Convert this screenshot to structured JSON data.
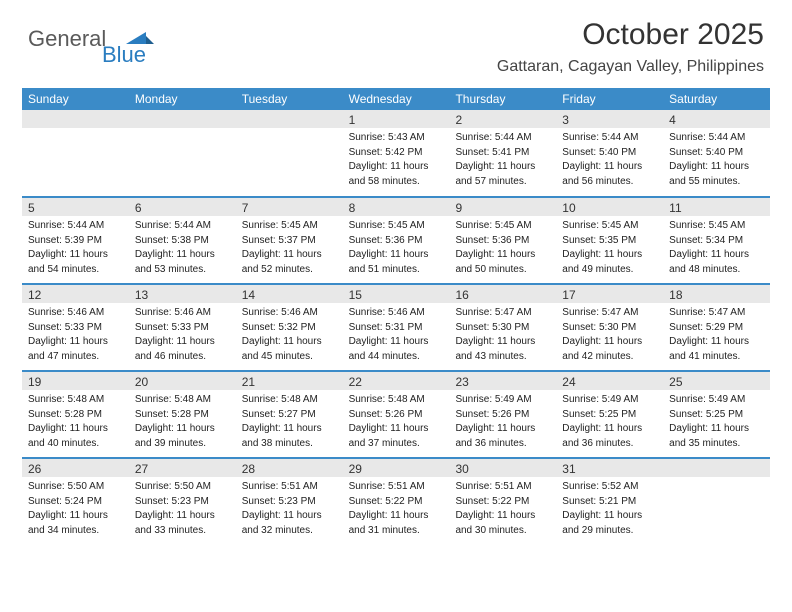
{
  "logo": {
    "text_general": "General",
    "text_blue": "Blue",
    "shape_color": "#2a7dc0",
    "text_general_color": "#5a5a5a"
  },
  "header": {
    "month_title": "October 2025",
    "location": "Gattaran, Cagayan Valley, Philippines",
    "title_fontsize": 30,
    "location_fontsize": 16
  },
  "colors": {
    "header_bar": "#3b8bc8",
    "daynum_bar": "#e8e8e8",
    "border": "#3b8bc8",
    "text": "#222222",
    "background": "#ffffff"
  },
  "weekdays": [
    "Sunday",
    "Monday",
    "Tuesday",
    "Wednesday",
    "Thursday",
    "Friday",
    "Saturday"
  ],
  "weeks": [
    [
      {
        "num": "",
        "sunrise": "",
        "sunset": "",
        "daylight1": "",
        "daylight2": ""
      },
      {
        "num": "",
        "sunrise": "",
        "sunset": "",
        "daylight1": "",
        "daylight2": ""
      },
      {
        "num": "",
        "sunrise": "",
        "sunset": "",
        "daylight1": "",
        "daylight2": ""
      },
      {
        "num": "1",
        "sunrise": "Sunrise: 5:43 AM",
        "sunset": "Sunset: 5:42 PM",
        "daylight1": "Daylight: 11 hours",
        "daylight2": "and 58 minutes."
      },
      {
        "num": "2",
        "sunrise": "Sunrise: 5:44 AM",
        "sunset": "Sunset: 5:41 PM",
        "daylight1": "Daylight: 11 hours",
        "daylight2": "and 57 minutes."
      },
      {
        "num": "3",
        "sunrise": "Sunrise: 5:44 AM",
        "sunset": "Sunset: 5:40 PM",
        "daylight1": "Daylight: 11 hours",
        "daylight2": "and 56 minutes."
      },
      {
        "num": "4",
        "sunrise": "Sunrise: 5:44 AM",
        "sunset": "Sunset: 5:40 PM",
        "daylight1": "Daylight: 11 hours",
        "daylight2": "and 55 minutes."
      }
    ],
    [
      {
        "num": "5",
        "sunrise": "Sunrise: 5:44 AM",
        "sunset": "Sunset: 5:39 PM",
        "daylight1": "Daylight: 11 hours",
        "daylight2": "and 54 minutes."
      },
      {
        "num": "6",
        "sunrise": "Sunrise: 5:44 AM",
        "sunset": "Sunset: 5:38 PM",
        "daylight1": "Daylight: 11 hours",
        "daylight2": "and 53 minutes."
      },
      {
        "num": "7",
        "sunrise": "Sunrise: 5:45 AM",
        "sunset": "Sunset: 5:37 PM",
        "daylight1": "Daylight: 11 hours",
        "daylight2": "and 52 minutes."
      },
      {
        "num": "8",
        "sunrise": "Sunrise: 5:45 AM",
        "sunset": "Sunset: 5:36 PM",
        "daylight1": "Daylight: 11 hours",
        "daylight2": "and 51 minutes."
      },
      {
        "num": "9",
        "sunrise": "Sunrise: 5:45 AM",
        "sunset": "Sunset: 5:36 PM",
        "daylight1": "Daylight: 11 hours",
        "daylight2": "and 50 minutes."
      },
      {
        "num": "10",
        "sunrise": "Sunrise: 5:45 AM",
        "sunset": "Sunset: 5:35 PM",
        "daylight1": "Daylight: 11 hours",
        "daylight2": "and 49 minutes."
      },
      {
        "num": "11",
        "sunrise": "Sunrise: 5:45 AM",
        "sunset": "Sunset: 5:34 PM",
        "daylight1": "Daylight: 11 hours",
        "daylight2": "and 48 minutes."
      }
    ],
    [
      {
        "num": "12",
        "sunrise": "Sunrise: 5:46 AM",
        "sunset": "Sunset: 5:33 PM",
        "daylight1": "Daylight: 11 hours",
        "daylight2": "and 47 minutes."
      },
      {
        "num": "13",
        "sunrise": "Sunrise: 5:46 AM",
        "sunset": "Sunset: 5:33 PM",
        "daylight1": "Daylight: 11 hours",
        "daylight2": "and 46 minutes."
      },
      {
        "num": "14",
        "sunrise": "Sunrise: 5:46 AM",
        "sunset": "Sunset: 5:32 PM",
        "daylight1": "Daylight: 11 hours",
        "daylight2": "and 45 minutes."
      },
      {
        "num": "15",
        "sunrise": "Sunrise: 5:46 AM",
        "sunset": "Sunset: 5:31 PM",
        "daylight1": "Daylight: 11 hours",
        "daylight2": "and 44 minutes."
      },
      {
        "num": "16",
        "sunrise": "Sunrise: 5:47 AM",
        "sunset": "Sunset: 5:30 PM",
        "daylight1": "Daylight: 11 hours",
        "daylight2": "and 43 minutes."
      },
      {
        "num": "17",
        "sunrise": "Sunrise: 5:47 AM",
        "sunset": "Sunset: 5:30 PM",
        "daylight1": "Daylight: 11 hours",
        "daylight2": "and 42 minutes."
      },
      {
        "num": "18",
        "sunrise": "Sunrise: 5:47 AM",
        "sunset": "Sunset: 5:29 PM",
        "daylight1": "Daylight: 11 hours",
        "daylight2": "and 41 minutes."
      }
    ],
    [
      {
        "num": "19",
        "sunrise": "Sunrise: 5:48 AM",
        "sunset": "Sunset: 5:28 PM",
        "daylight1": "Daylight: 11 hours",
        "daylight2": "and 40 minutes."
      },
      {
        "num": "20",
        "sunrise": "Sunrise: 5:48 AM",
        "sunset": "Sunset: 5:28 PM",
        "daylight1": "Daylight: 11 hours",
        "daylight2": "and 39 minutes."
      },
      {
        "num": "21",
        "sunrise": "Sunrise: 5:48 AM",
        "sunset": "Sunset: 5:27 PM",
        "daylight1": "Daylight: 11 hours",
        "daylight2": "and 38 minutes."
      },
      {
        "num": "22",
        "sunrise": "Sunrise: 5:48 AM",
        "sunset": "Sunset: 5:26 PM",
        "daylight1": "Daylight: 11 hours",
        "daylight2": "and 37 minutes."
      },
      {
        "num": "23",
        "sunrise": "Sunrise: 5:49 AM",
        "sunset": "Sunset: 5:26 PM",
        "daylight1": "Daylight: 11 hours",
        "daylight2": "and 36 minutes."
      },
      {
        "num": "24",
        "sunrise": "Sunrise: 5:49 AM",
        "sunset": "Sunset: 5:25 PM",
        "daylight1": "Daylight: 11 hours",
        "daylight2": "and 36 minutes."
      },
      {
        "num": "25",
        "sunrise": "Sunrise: 5:49 AM",
        "sunset": "Sunset: 5:25 PM",
        "daylight1": "Daylight: 11 hours",
        "daylight2": "and 35 minutes."
      }
    ],
    [
      {
        "num": "26",
        "sunrise": "Sunrise: 5:50 AM",
        "sunset": "Sunset: 5:24 PM",
        "daylight1": "Daylight: 11 hours",
        "daylight2": "and 34 minutes."
      },
      {
        "num": "27",
        "sunrise": "Sunrise: 5:50 AM",
        "sunset": "Sunset: 5:23 PM",
        "daylight1": "Daylight: 11 hours",
        "daylight2": "and 33 minutes."
      },
      {
        "num": "28",
        "sunrise": "Sunrise: 5:51 AM",
        "sunset": "Sunset: 5:23 PM",
        "daylight1": "Daylight: 11 hours",
        "daylight2": "and 32 minutes."
      },
      {
        "num": "29",
        "sunrise": "Sunrise: 5:51 AM",
        "sunset": "Sunset: 5:22 PM",
        "daylight1": "Daylight: 11 hours",
        "daylight2": "and 31 minutes."
      },
      {
        "num": "30",
        "sunrise": "Sunrise: 5:51 AM",
        "sunset": "Sunset: 5:22 PM",
        "daylight1": "Daylight: 11 hours",
        "daylight2": "and 30 minutes."
      },
      {
        "num": "31",
        "sunrise": "Sunrise: 5:52 AM",
        "sunset": "Sunset: 5:21 PM",
        "daylight1": "Daylight: 11 hours",
        "daylight2": "and 29 minutes."
      },
      {
        "num": "",
        "sunrise": "",
        "sunset": "",
        "daylight1": "",
        "daylight2": ""
      }
    ]
  ]
}
